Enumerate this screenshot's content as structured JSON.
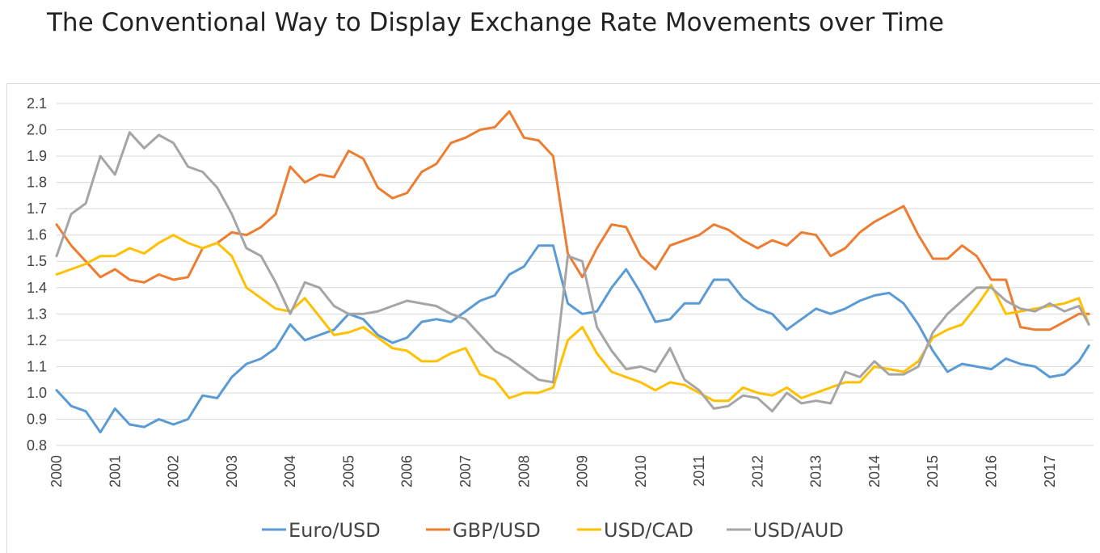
{
  "page": {
    "title": "The Conventional Way to Display Exchange Rate Movements over Time"
  },
  "chart_data": {
    "type": "line",
    "title": "",
    "xlabel": "",
    "ylabel": "",
    "xlim": [
      2000,
      2017.75
    ],
    "ylim": [
      0.8,
      2.1
    ],
    "y_ticks": [
      "0.8",
      "0.9",
      "1.0",
      "1.1",
      "1.2",
      "1.3",
      "1.4",
      "1.5",
      "1.6",
      "1.7",
      "1.8",
      "1.9",
      "2.0",
      "2.1"
    ],
    "x_ticks": [
      "2000",
      "2001",
      "2002",
      "2003",
      "2004",
      "2005",
      "2006",
      "2007",
      "2008",
      "2009",
      "2010",
      "2011",
      "2012",
      "2013",
      "2014",
      "2015",
      "2016",
      "2017"
    ],
    "grid": "horizontal",
    "legend": "bottom",
    "series": [
      {
        "name": "Euro/USD",
        "color": "#5b9bd5",
        "x": [
          2000,
          2000.25,
          2000.5,
          2000.75,
          2001,
          2001.25,
          2001.5,
          2001.75,
          2002,
          2002.25,
          2002.5,
          2002.75,
          2003,
          2003.25,
          2003.5,
          2003.75,
          2004,
          2004.25,
          2004.5,
          2004.75,
          2005,
          2005.25,
          2005.5,
          2005.75,
          2006,
          2006.25,
          2006.5,
          2006.75,
          2007,
          2007.25,
          2007.5,
          2007.75,
          2008,
          2008.25,
          2008.5,
          2008.75,
          2009,
          2009.25,
          2009.5,
          2009.75,
          2010,
          2010.25,
          2010.5,
          2010.75,
          2011,
          2011.25,
          2011.5,
          2011.75,
          2012,
          2012.25,
          2012.5,
          2012.75,
          2013,
          2013.25,
          2013.5,
          2013.75,
          2014,
          2014.25,
          2014.5,
          2014.75,
          2015,
          2015.25,
          2015.5,
          2015.75,
          2016,
          2016.25,
          2016.5,
          2016.75,
          2017,
          2017.25,
          2017.5,
          2017.67
        ],
        "values": [
          1.01,
          0.95,
          0.93,
          0.85,
          0.94,
          0.88,
          0.87,
          0.9,
          0.88,
          0.9,
          0.99,
          0.98,
          1.06,
          1.11,
          1.13,
          1.17,
          1.26,
          1.2,
          1.22,
          1.24,
          1.3,
          1.28,
          1.22,
          1.19,
          1.21,
          1.27,
          1.28,
          1.27,
          1.31,
          1.35,
          1.37,
          1.45,
          1.48,
          1.56,
          1.56,
          1.34,
          1.3,
          1.31,
          1.4,
          1.47,
          1.38,
          1.27,
          1.28,
          1.34,
          1.34,
          1.43,
          1.43,
          1.36,
          1.32,
          1.3,
          1.24,
          1.28,
          1.32,
          1.3,
          1.32,
          1.35,
          1.37,
          1.38,
          1.34,
          1.26,
          1.16,
          1.08,
          1.11,
          1.1,
          1.09,
          1.13,
          1.11,
          1.1,
          1.06,
          1.07,
          1.12,
          1.18
        ]
      },
      {
        "name": "GBP/USD",
        "color": "#ed7d31",
        "x": [
          2000,
          2000.25,
          2000.5,
          2000.75,
          2001,
          2001.25,
          2001.5,
          2001.75,
          2002,
          2002.25,
          2002.5,
          2002.75,
          2003,
          2003.25,
          2003.5,
          2003.75,
          2004,
          2004.25,
          2004.5,
          2004.75,
          2005,
          2005.25,
          2005.5,
          2005.75,
          2006,
          2006.25,
          2006.5,
          2006.75,
          2007,
          2007.25,
          2007.5,
          2007.75,
          2008,
          2008.25,
          2008.5,
          2008.75,
          2009,
          2009.25,
          2009.5,
          2009.75,
          2010,
          2010.25,
          2010.5,
          2010.75,
          2011,
          2011.25,
          2011.5,
          2011.75,
          2012,
          2012.25,
          2012.5,
          2012.75,
          2013,
          2013.25,
          2013.5,
          2013.75,
          2014,
          2014.25,
          2014.5,
          2014.75,
          2015,
          2015.25,
          2015.5,
          2015.75,
          2016,
          2016.25,
          2016.5,
          2016.75,
          2017,
          2017.25,
          2017.5,
          2017.67
        ],
        "values": [
          1.64,
          1.56,
          1.5,
          1.44,
          1.47,
          1.43,
          1.42,
          1.45,
          1.43,
          1.44,
          1.55,
          1.57,
          1.61,
          1.6,
          1.63,
          1.68,
          1.86,
          1.8,
          1.83,
          1.82,
          1.92,
          1.89,
          1.78,
          1.74,
          1.76,
          1.84,
          1.87,
          1.95,
          1.97,
          2.0,
          2.01,
          2.07,
          1.97,
          1.96,
          1.9,
          1.53,
          1.44,
          1.55,
          1.64,
          1.63,
          1.52,
          1.47,
          1.56,
          1.58,
          1.6,
          1.64,
          1.62,
          1.58,
          1.55,
          1.58,
          1.56,
          1.61,
          1.6,
          1.52,
          1.55,
          1.61,
          1.65,
          1.68,
          1.71,
          1.6,
          1.51,
          1.51,
          1.56,
          1.52,
          1.43,
          1.43,
          1.25,
          1.24,
          1.24,
          1.27,
          1.3,
          1.3
        ]
      },
      {
        "name": "USD/CAD",
        "color": "#ffc000",
        "x": [
          2000,
          2000.25,
          2000.5,
          2000.75,
          2001,
          2001.25,
          2001.5,
          2001.75,
          2002,
          2002.25,
          2002.5,
          2002.75,
          2003,
          2003.25,
          2003.5,
          2003.75,
          2004,
          2004.25,
          2004.5,
          2004.75,
          2005,
          2005.25,
          2005.5,
          2005.75,
          2006,
          2006.25,
          2006.5,
          2006.75,
          2007,
          2007.25,
          2007.5,
          2007.75,
          2008,
          2008.25,
          2008.5,
          2008.75,
          2009,
          2009.25,
          2009.5,
          2009.75,
          2010,
          2010.25,
          2010.5,
          2010.75,
          2011,
          2011.25,
          2011.5,
          2011.75,
          2012,
          2012.25,
          2012.5,
          2012.75,
          2013,
          2013.25,
          2013.5,
          2013.75,
          2014,
          2014.25,
          2014.5,
          2014.75,
          2015,
          2015.25,
          2015.5,
          2015.75,
          2016,
          2016.25,
          2016.5,
          2016.75,
          2017,
          2017.25,
          2017.5,
          2017.67
        ],
        "values": [
          1.45,
          1.47,
          1.49,
          1.52,
          1.52,
          1.55,
          1.53,
          1.57,
          1.6,
          1.57,
          1.55,
          1.57,
          1.52,
          1.4,
          1.36,
          1.32,
          1.31,
          1.36,
          1.29,
          1.22,
          1.23,
          1.25,
          1.21,
          1.17,
          1.16,
          1.12,
          1.12,
          1.15,
          1.17,
          1.07,
          1.05,
          0.98,
          1.0,
          1.0,
          1.02,
          1.2,
          1.25,
          1.15,
          1.08,
          1.06,
          1.04,
          1.01,
          1.04,
          1.03,
          1.0,
          0.97,
          0.97,
          1.02,
          1.0,
          0.99,
          1.02,
          0.98,
          1.0,
          1.02,
          1.04,
          1.04,
          1.1,
          1.09,
          1.08,
          1.12,
          1.21,
          1.24,
          1.26,
          1.33,
          1.41,
          1.3,
          1.31,
          1.32,
          1.33,
          1.34,
          1.36,
          1.26
        ]
      },
      {
        "name": "USD/AUD",
        "color": "#a5a5a5",
        "x": [
          2000,
          2000.25,
          2000.5,
          2000.75,
          2001,
          2001.25,
          2001.5,
          2001.75,
          2002,
          2002.25,
          2002.5,
          2002.75,
          2003,
          2003.25,
          2003.5,
          2003.75,
          2004,
          2004.25,
          2004.5,
          2004.75,
          2005,
          2005.25,
          2005.5,
          2005.75,
          2006,
          2006.25,
          2006.5,
          2006.75,
          2007,
          2007.25,
          2007.5,
          2007.75,
          2008,
          2008.25,
          2008.5,
          2008.75,
          2009,
          2009.25,
          2009.5,
          2009.75,
          2010,
          2010.25,
          2010.5,
          2010.75,
          2011,
          2011.25,
          2011.5,
          2011.75,
          2012,
          2012.25,
          2012.5,
          2012.75,
          2013,
          2013.25,
          2013.5,
          2013.75,
          2014,
          2014.25,
          2014.5,
          2014.75,
          2015,
          2015.25,
          2015.5,
          2015.75,
          2016,
          2016.25,
          2016.5,
          2016.75,
          2017,
          2017.25,
          2017.5,
          2017.67
        ],
        "values": [
          1.52,
          1.68,
          1.72,
          1.9,
          1.83,
          1.99,
          1.93,
          1.98,
          1.95,
          1.86,
          1.84,
          1.78,
          1.68,
          1.55,
          1.52,
          1.42,
          1.3,
          1.42,
          1.4,
          1.33,
          1.3,
          1.3,
          1.31,
          1.33,
          1.35,
          1.34,
          1.33,
          1.3,
          1.28,
          1.22,
          1.16,
          1.13,
          1.09,
          1.05,
          1.04,
          1.52,
          1.5,
          1.25,
          1.16,
          1.09,
          1.1,
          1.08,
          1.17,
          1.05,
          1.01,
          0.94,
          0.95,
          0.99,
          0.98,
          0.93,
          1.0,
          0.96,
          0.97,
          0.96,
          1.08,
          1.06,
          1.12,
          1.07,
          1.07,
          1.1,
          1.23,
          1.3,
          1.35,
          1.4,
          1.4,
          1.35,
          1.32,
          1.31,
          1.34,
          1.31,
          1.33,
          1.26
        ]
      }
    ]
  }
}
